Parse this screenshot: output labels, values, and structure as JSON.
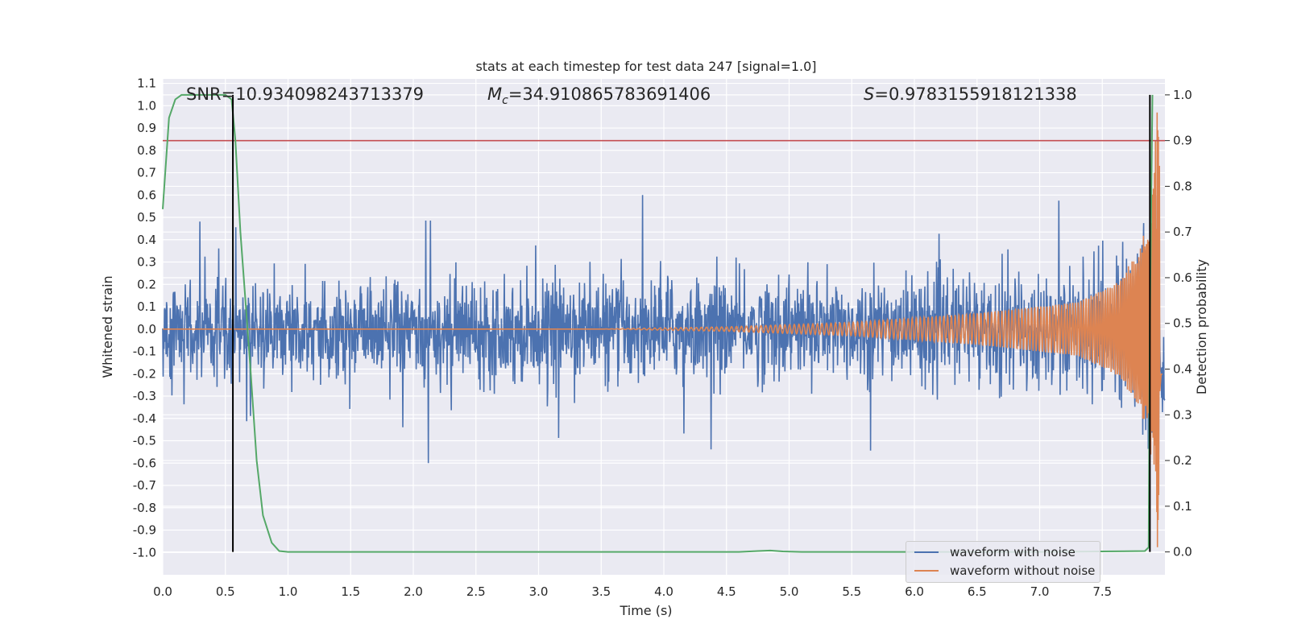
{
  "chart_data": {
    "type": "line",
    "title": "stats at each timestep for test data 247 [signal=1.0]",
    "xlabel": "Time (s)",
    "ylabel": "Whitened strain",
    "ylabel_right": "Detection probability",
    "xlim": [
      0.0,
      8.0
    ],
    "ylim": [
      -1.1,
      1.12
    ],
    "ylim_right": [
      -0.05,
      1.035
    ],
    "xticks": [
      "0.0",
      "0.5",
      "1.0",
      "1.5",
      "2.0",
      "2.5",
      "3.0",
      "3.5",
      "4.0",
      "4.5",
      "5.0",
      "5.5",
      "6.0",
      "6.5",
      "7.0",
      "7.5"
    ],
    "yticks": [
      "1.1",
      "1.0",
      "0.9",
      "0.8",
      "0.7",
      "0.6",
      "0.5",
      "0.4",
      "0.3",
      "0.2",
      "0.1",
      "0.0",
      "-0.1",
      "-0.2",
      "-0.3",
      "-0.4",
      "-0.5",
      "-0.6",
      "-0.7",
      "-0.8",
      "-0.9",
      "-1.0"
    ],
    "yticks_right": [
      "1.0",
      "0.9",
      "0.8",
      "0.7",
      "0.6",
      "0.5",
      "0.4",
      "0.3",
      "0.2",
      "0.1",
      "0.0"
    ],
    "annotations": {
      "snr": "SNR=10.934098243713379",
      "mc_symbol": "M",
      "mc_sub": "c",
      "mc_value": "=34.910865783691406",
      "s_symbol": "S",
      "s_value": "=0.9783155918121338"
    },
    "threshold_right": 0.9,
    "vertical_markers": [
      0.56,
      7.88
    ],
    "series": [
      {
        "name": "waveform with noise",
        "color": "#4c72b0",
        "typical_amplitude": 0.22,
        "spike_max": 0.5
      },
      {
        "name": "waveform without noise",
        "color": "#dd8452",
        "envelope": [
          [
            0.0,
            0.0
          ],
          [
            3.5,
            0.0
          ],
          [
            4.5,
            0.01
          ],
          [
            5.5,
            0.03
          ],
          [
            6.5,
            0.07
          ],
          [
            7.3,
            0.12
          ],
          [
            7.6,
            0.2
          ],
          [
            7.8,
            0.35
          ],
          [
            7.9,
            0.6
          ],
          [
            7.94,
            1.0
          ],
          [
            7.97,
            0.5
          ]
        ]
      },
      {
        "name": "detection probability",
        "color": "#55a868",
        "axis": "right",
        "x": [
          0.0,
          0.05,
          0.1,
          0.15,
          0.2,
          0.3,
          0.4,
          0.5,
          0.55,
          0.58,
          0.62,
          0.7,
          0.75,
          0.8,
          0.87,
          0.93,
          1.0,
          1.5,
          2.0,
          3.0,
          4.0,
          4.6,
          4.75,
          4.85,
          4.95,
          5.1,
          6.0,
          7.0,
          7.84,
          7.87,
          7.88,
          7.9
        ],
        "y": [
          0.75,
          0.95,
          0.99,
          1.0,
          1.0,
          1.0,
          1.0,
          1.0,
          0.99,
          0.9,
          0.7,
          0.4,
          0.2,
          0.08,
          0.02,
          0.002,
          0.0,
          0.0,
          0.0,
          0.0,
          0.0,
          0.0,
          0.002,
          0.003,
          0.001,
          0.0,
          0.0,
          0.0,
          0.002,
          0.01,
          0.5,
          1.0
        ]
      },
      {
        "name": "threshold",
        "color": "#c44e52",
        "axis": "right",
        "value": 0.9
      }
    ],
    "legend": [
      "waveform with noise",
      "waveform without noise"
    ],
    "legend_position": "lower-right"
  }
}
